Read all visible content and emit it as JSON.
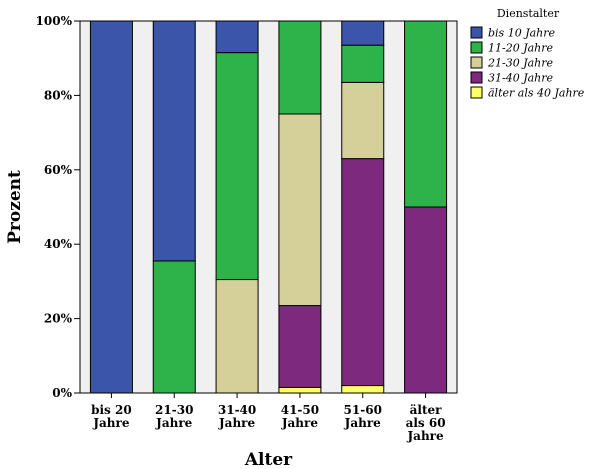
{
  "chart_data": {
    "type": "bar",
    "stacked": true,
    "percent": true,
    "xlabel": "Alter",
    "ylabel": "Prozent",
    "ylim": [
      0,
      100
    ],
    "yticks": [
      "0%",
      "20%",
      "40%",
      "60%",
      "80%",
      "100%"
    ],
    "categories": [
      [
        "bis 20",
        "Jahre"
      ],
      [
        "21-30",
        "Jahre"
      ],
      [
        "31-40",
        "Jahre"
      ],
      [
        "41-50",
        "Jahre"
      ],
      [
        "51-60",
        "Jahre"
      ],
      [
        "älter",
        "als 60",
        "Jahre"
      ]
    ],
    "legend": {
      "title": "Dienstalter",
      "placement": "top-right"
    },
    "series": [
      {
        "name": "älter als 40 Jahre",
        "color": "#ffff66",
        "values": [
          0,
          0,
          0,
          1.5,
          2,
          0
        ]
      },
      {
        "name": "31-40 Jahre",
        "color": "#7d2a7e",
        "values": [
          0,
          0,
          0,
          22,
          61,
          50
        ]
      },
      {
        "name": "21-30 Jahre",
        "color": "#d5cf9a",
        "values": [
          0,
          0,
          30.5,
          51.5,
          20.5,
          0
        ]
      },
      {
        "name": "11-20 Jahre",
        "color": "#2db34a",
        "values": [
          0,
          35.5,
          61,
          25,
          10,
          50
        ]
      },
      {
        "name": "bis 10 Jahre",
        "color": "#3b55ab",
        "values": [
          100,
          64.5,
          8.5,
          0,
          6.5,
          0
        ]
      }
    ],
    "legend_order": [
      "bis 10 Jahre",
      "11-20 Jahre",
      "21-30 Jahre",
      "31-40 Jahre",
      "älter als 40 Jahre"
    ],
    "plot_background": "#f0f0f0"
  }
}
